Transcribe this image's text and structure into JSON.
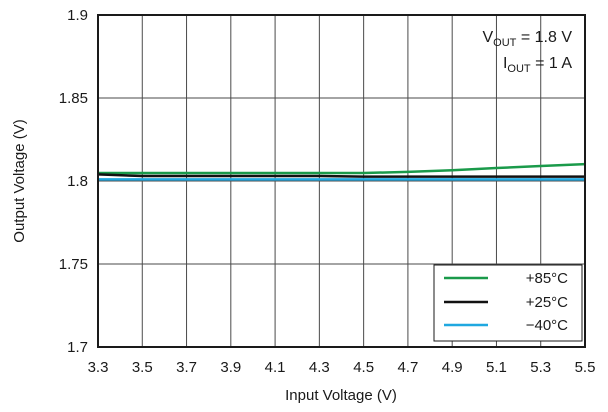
{
  "chart_data": {
    "type": "line",
    "xlabel": "Input Voltage (V)",
    "ylabel": "Output Voltage (V)",
    "xlim": [
      3.3,
      5.5
    ],
    "ylim": [
      1.7,
      1.9
    ],
    "x_ticks": [
      "3.3",
      "3.5",
      "3.7",
      "3.9",
      "4.1",
      "4.3",
      "4.5",
      "4.7",
      "4.9",
      "5.1",
      "5.3",
      "5.5"
    ],
    "y_ticks": [
      "1.7",
      "1.75",
      "1.8",
      "1.85",
      "1.9"
    ],
    "grid": true,
    "legend_position": "bottom-right",
    "annotation": {
      "line1": {
        "main": "V",
        "sub": "OUT",
        "rest": " = 1.8 V"
      },
      "line2": {
        "main": "I",
        "sub": "OUT",
        "rest": " = 1 A"
      }
    },
    "series": [
      {
        "name": "+85°C",
        "color": "#1a9a4a",
        "x": [
          3.3,
          3.5,
          3.7,
          3.9,
          4.1,
          4.3,
          4.5,
          4.7,
          4.9,
          5.1,
          5.3,
          5.5
        ],
        "y": [
          1.8048,
          1.8048,
          1.8048,
          1.8048,
          1.8048,
          1.8048,
          1.8048,
          1.8055,
          1.8065,
          1.8078,
          1.809,
          1.8102
        ]
      },
      {
        "name": "+25°C",
        "color": "#111111",
        "x": [
          3.3,
          3.5,
          3.7,
          3.9,
          4.1,
          4.3,
          4.5,
          4.7,
          4.9,
          5.1,
          5.3,
          5.5
        ],
        "y": [
          1.804,
          1.803,
          1.803,
          1.803,
          1.803,
          1.803,
          1.8026,
          1.8026,
          1.8026,
          1.8026,
          1.8026,
          1.8026
        ]
      },
      {
        "name": "−40°C",
        "color": "#1fa8e0",
        "x": [
          3.3,
          3.5,
          3.7,
          3.9,
          4.1,
          4.3,
          4.5,
          4.7,
          4.9,
          5.1,
          5.3,
          5.5
        ],
        "y": [
          1.801,
          1.801,
          1.801,
          1.801,
          1.801,
          1.801,
          1.801,
          1.801,
          1.801,
          1.801,
          1.801,
          1.801
        ]
      }
    ]
  }
}
